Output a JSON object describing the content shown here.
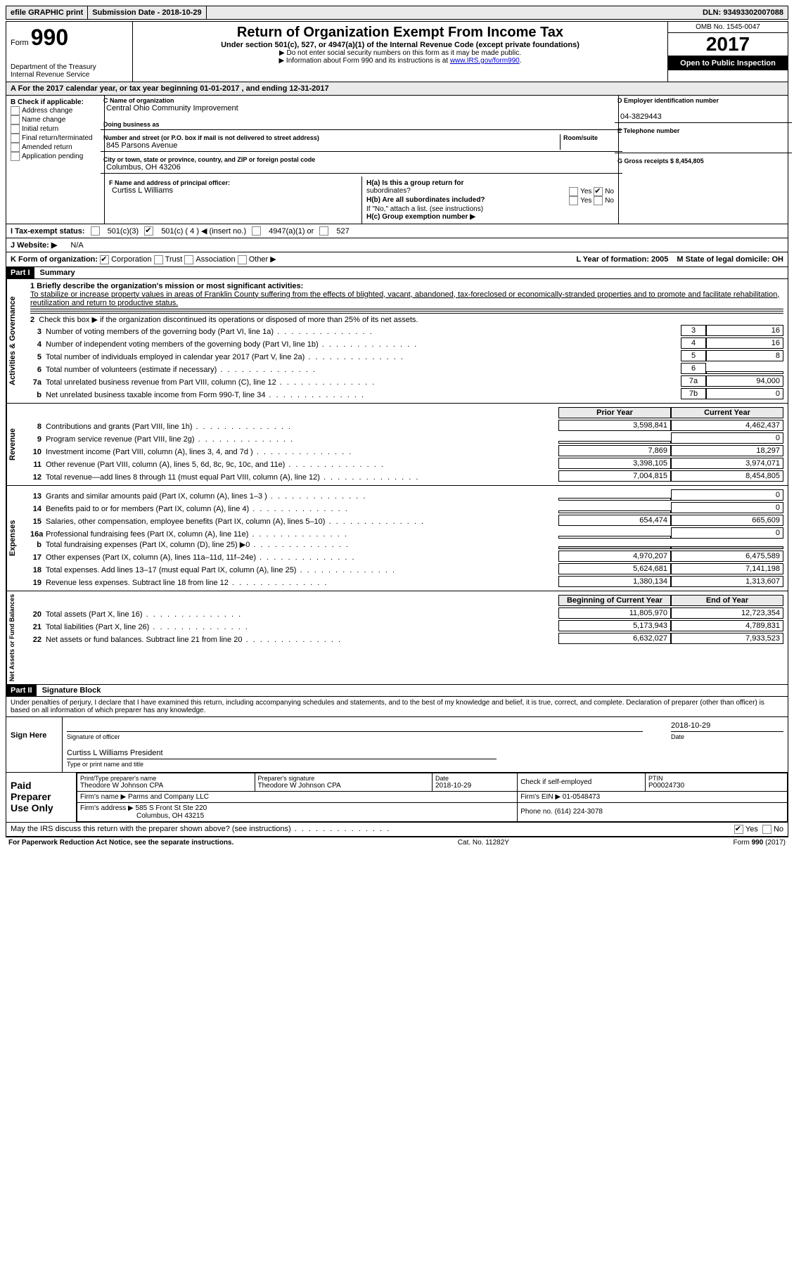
{
  "top": {
    "efile": "efile GRAPHIC print",
    "submission": "Submission Date - 2018-10-29",
    "dln": "DLN: 93493302007088"
  },
  "header": {
    "form_prefix": "Form",
    "form_num": "990",
    "dept1": "Department of the Treasury",
    "dept2": "Internal Revenue Service",
    "title": "Return of Organization Exempt From Income Tax",
    "subtitle": "Under section 501(c), 527, or 4947(a)(1) of the Internal Revenue Code (except private foundations)",
    "instr1": "▶ Do not enter social security numbers on this form as it may be made public.",
    "instr2_pre": "▶ Information about Form 990 and its instructions is at ",
    "instr2_link": "www.IRS.gov/form990",
    "omb": "OMB No. 1545-0047",
    "year": "2017",
    "open": "Open to Public Inspection"
  },
  "rowA": "A  For the 2017 calendar year, or tax year beginning 01-01-2017   , and ending 12-31-2017",
  "colB": {
    "title": "B Check if applicable:",
    "items": [
      "Address change",
      "Name change",
      "Initial return",
      "Final return/terminated",
      "Amended return",
      "Application pending"
    ]
  },
  "colC": {
    "name_lbl": "C Name of organization",
    "name": "Central Ohio Community Improvement",
    "dba_lbl": "Doing business as",
    "addr_lbl": "Number and street (or P.O. box if mail is not delivered to street address)",
    "room_lbl": "Room/suite",
    "addr": "845 Parsons Avenue",
    "city_lbl": "City or town, state or province, country, and ZIP or foreign postal code",
    "city": "Columbus, OH  43206",
    "officer_lbl": "F Name and address of principal officer:",
    "officer": "Curtiss L Williams"
  },
  "colD": {
    "ein_lbl": "D Employer identification number",
    "ein": "04-3829443",
    "tel_lbl": "E Telephone number",
    "gross_lbl": "G Gross receipts $ 8,454,805"
  },
  "colH": {
    "ha": "H(a)  Is this a group return for",
    "ha2": "subordinates?",
    "hb": "H(b)  Are all subordinates included?",
    "hb_note": "If \"No,\" attach a list. (see instructions)",
    "hc": "H(c)  Group exemption number ▶"
  },
  "rowI": {
    "label": "I  Tax-exempt status:",
    "opts": [
      "501(c)(3)",
      "501(c) ( 4 ) ◀ (insert no.)",
      "4947(a)(1) or",
      "527"
    ]
  },
  "rowJ": {
    "label": "J  Website: ▶",
    "val": "N/A"
  },
  "rowK": {
    "label": "K Form of organization:",
    "opts": [
      "Corporation",
      "Trust",
      "Association",
      "Other ▶"
    ]
  },
  "rowLM": {
    "L": "L Year of formation: 2005",
    "M": "M State of legal domicile: OH"
  },
  "part1": {
    "hdr": "Part I",
    "title": "Summary",
    "q1_lbl": "1  Briefly describe the organization's mission or most significant activities:",
    "q1_txt": "To stabilize or increase property values in areas of Franklin County suffering from the effects of blighted, vacant, abandoned, tax-foreclosed or economically-stranded properties and to promote and facilitate rehabilitation, reutilization and return to productive status.",
    "q2": "Check this box ▶        if the organization discontinued its operations or disposed of more than 25% of its net assets.",
    "side_act": "Activities & Governance",
    "side_rev": "Revenue",
    "side_exp": "Expenses",
    "side_net": "Net Assets or Fund Balances",
    "prior": "Prior Year",
    "current": "Current Year",
    "begin": "Beginning of Current Year",
    "end": "End of Year",
    "lines_gov": [
      {
        "n": "3",
        "d": "Number of voting members of the governing body (Part VI, line 1a)",
        "b": "3",
        "v": "16"
      },
      {
        "n": "4",
        "d": "Number of independent voting members of the governing body (Part VI, line 1b)",
        "b": "4",
        "v": "16"
      },
      {
        "n": "5",
        "d": "Total number of individuals employed in calendar year 2017 (Part V, line 2a)",
        "b": "5",
        "v": "8"
      },
      {
        "n": "6",
        "d": "Total number of volunteers (estimate if necessary)",
        "b": "6",
        "v": ""
      },
      {
        "n": "7a",
        "d": "Total unrelated business revenue from Part VIII, column (C), line 12",
        "b": "7a",
        "v": "94,000"
      },
      {
        "n": "b",
        "d": "Net unrelated business taxable income from Form 990-T, line 34",
        "b": "7b",
        "v": "0"
      }
    ],
    "lines_rev": [
      {
        "n": "8",
        "d": "Contributions and grants (Part VIII, line 1h)",
        "p": "3,598,841",
        "c": "4,462,437"
      },
      {
        "n": "9",
        "d": "Program service revenue (Part VIII, line 2g)",
        "p": "",
        "c": "0"
      },
      {
        "n": "10",
        "d": "Investment income (Part VIII, column (A), lines 3, 4, and 7d )",
        "p": "7,869",
        "c": "18,297"
      },
      {
        "n": "11",
        "d": "Other revenue (Part VIII, column (A), lines 5, 6d, 8c, 9c, 10c, and 11e)",
        "p": "3,398,105",
        "c": "3,974,071"
      },
      {
        "n": "12",
        "d": "Total revenue—add lines 8 through 11 (must equal Part VIII, column (A), line 12)",
        "p": "7,004,815",
        "c": "8,454,805"
      }
    ],
    "lines_exp": [
      {
        "n": "13",
        "d": "Grants and similar amounts paid (Part IX, column (A), lines 1–3 )",
        "p": "",
        "c": "0"
      },
      {
        "n": "14",
        "d": "Benefits paid to or for members (Part IX, column (A), line 4)",
        "p": "",
        "c": "0"
      },
      {
        "n": "15",
        "d": "Salaries, other compensation, employee benefits (Part IX, column (A), lines 5–10)",
        "p": "654,474",
        "c": "665,609"
      },
      {
        "n": "16a",
        "d": "Professional fundraising fees (Part IX, column (A), line 11e)",
        "p": "",
        "c": "0"
      },
      {
        "n": "b",
        "d": "Total fundraising expenses (Part IX, column (D), line 25) ▶0",
        "p": "shade",
        "c": "shade"
      },
      {
        "n": "17",
        "d": "Other expenses (Part IX, column (A), lines 11a–11d, 11f–24e)",
        "p": "4,970,207",
        "c": "6,475,589"
      },
      {
        "n": "18",
        "d": "Total expenses. Add lines 13–17 (must equal Part IX, column (A), line 25)",
        "p": "5,624,681",
        "c": "7,141,198"
      },
      {
        "n": "19",
        "d": "Revenue less expenses. Subtract line 18 from line 12",
        "p": "1,380,134",
        "c": "1,313,607"
      }
    ],
    "lines_net": [
      {
        "n": "20",
        "d": "Total assets (Part X, line 16)",
        "p": "11,805,970",
        "c": "12,723,354"
      },
      {
        "n": "21",
        "d": "Total liabilities (Part X, line 26)",
        "p": "5,173,943",
        "c": "4,789,831"
      },
      {
        "n": "22",
        "d": "Net assets or fund balances. Subtract line 21 from line 20",
        "p": "6,632,027",
        "c": "7,933,523"
      }
    ]
  },
  "part2": {
    "hdr": "Part II",
    "title": "Signature Block",
    "decl": "Under penalties of perjury, I declare that I have examined this return, including accompanying schedules and statements, and to the best of my knowledge and belief, it is true, correct, and complete. Declaration of preparer (other than officer) is based on all information of which preparer has any knowledge.",
    "sign_here": "Sign Here",
    "sig_officer": "Signature of officer",
    "date": "Date",
    "date_val": "2018-10-29",
    "name_title": "Curtiss L Williams  President",
    "name_title_lbl": "Type or print name and title",
    "paid": "Paid Preparer Use Only",
    "prep_name_lbl": "Print/Type preparer's name",
    "prep_name": "Theodore W Johnson CPA",
    "prep_sig_lbl": "Preparer's signature",
    "prep_sig": "Theodore W Johnson CPA",
    "prep_date_lbl": "Date",
    "prep_date": "2018-10-29",
    "self_emp": "Check         if self-employed",
    "ptin_lbl": "PTIN",
    "ptin": "P00024730",
    "firm_name_lbl": "Firm's name      ▶",
    "firm_name": "Parms and Company LLC",
    "firm_ein_lbl": "Firm's EIN ▶",
    "firm_ein": "01-0548473",
    "firm_addr_lbl": "Firm's address ▶",
    "firm_addr1": "585 S Front St Ste 220",
    "firm_addr2": "Columbus, OH  43215",
    "phone_lbl": "Phone no.",
    "phone": "(614) 224-3078",
    "discuss": "May the IRS discuss this return with the preparer shown above? (see instructions)"
  },
  "footer": {
    "pra": "For Paperwork Reduction Act Notice, see the separate instructions.",
    "cat": "Cat. No. 11282Y",
    "form": "Form 990 (2017)"
  }
}
